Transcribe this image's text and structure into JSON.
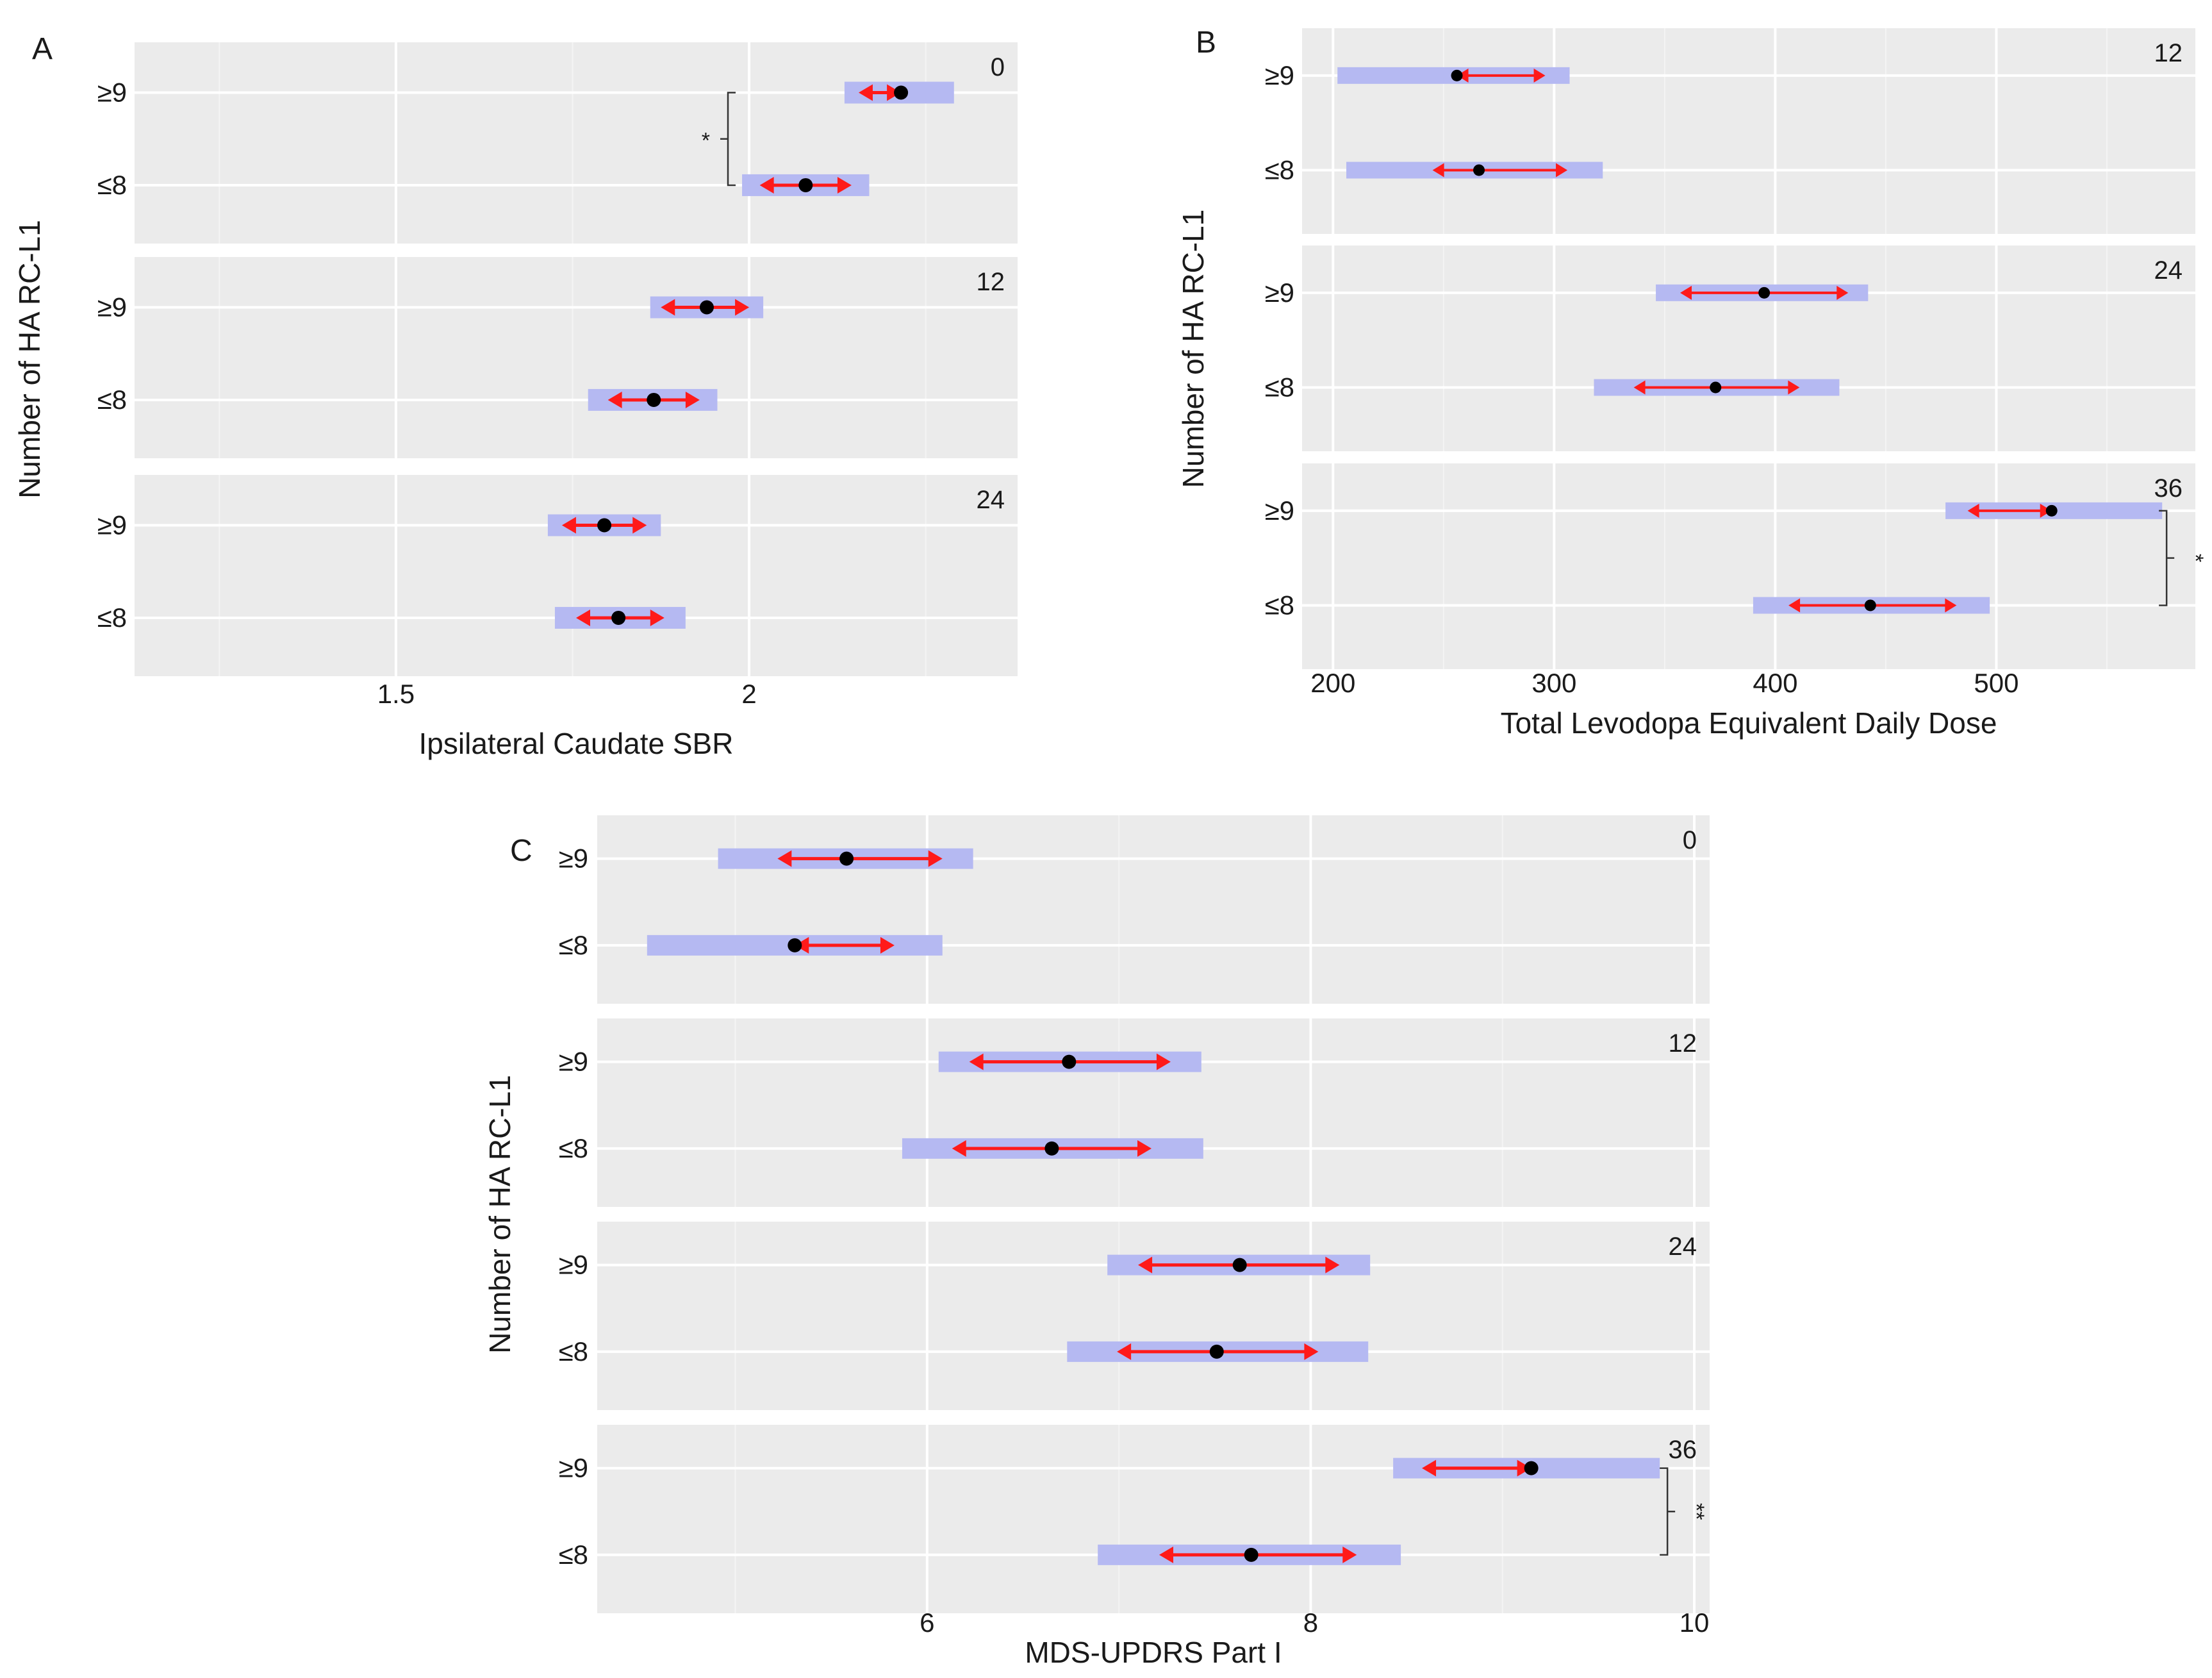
{
  "colors": {
    "panel_bg": "#ebebeb",
    "grid_major": "#ffffff",
    "grid_minor": "#f4f4f4",
    "ci_band": "#b5b9f2",
    "arrow": "#ff1a1a",
    "point": "#000000",
    "text": "#1a1a1a"
  },
  "chart_data": [
    {
      "id": "A",
      "type": "forest",
      "panel_label": "A",
      "xlabel": "Ipsilateral Caudate SBR",
      "ylabel": "Number of HA RC-L1",
      "xlim": [
        1.13,
        2.38
      ],
      "xticks": [
        1.5,
        2
      ],
      "xtick_labels": [
        "1.5",
        "2"
      ],
      "minor_xticks": [
        1.25,
        1.75,
        2.25
      ],
      "categories": [
        "≥9",
        "≤8"
      ],
      "facets": [
        {
          "label": "0",
          "rows": [
            {
              "group": "≥9",
              "mean": 2.215,
              "band": [
                2.135,
                2.29
              ],
              "arrow": [
                2.155,
                2.215
              ]
            },
            {
              "group": "≤8",
              "mean": 2.08,
              "band": [
                1.99,
                2.17
              ],
              "arrow": [
                2.015,
                2.145
              ]
            }
          ],
          "significance": {
            "label": "*",
            "from": "≥9",
            "to": "≤8",
            "side": "left",
            "x": 1.97
          }
        },
        {
          "label": "12",
          "rows": [
            {
              "group": "≥9",
              "mean": 1.94,
              "band": [
                1.86,
                2.02
              ],
              "arrow": [
                1.875,
                2.0
              ]
            },
            {
              "group": "≤8",
              "mean": 1.865,
              "band": [
                1.772,
                1.955
              ],
              "arrow": [
                1.8,
                1.93
              ]
            }
          ]
        },
        {
          "label": "24",
          "rows": [
            {
              "group": "≥9",
              "mean": 1.795,
              "band": [
                1.715,
                1.875
              ],
              "arrow": [
                1.735,
                1.855
              ]
            },
            {
              "group": "≤8",
              "mean": 1.815,
              "band": [
                1.725,
                1.91
              ],
              "arrow": [
                1.755,
                1.88
              ]
            }
          ]
        }
      ]
    },
    {
      "id": "B",
      "type": "forest",
      "panel_label": "B",
      "xlabel": "Total Levodopa Equivalent Daily Dose",
      "ylabel": "Number of HA RC-L1",
      "xlim": [
        186,
        590
      ],
      "xticks": [
        200,
        300,
        400,
        500
      ],
      "xtick_labels": [
        "200",
        "300",
        "400",
        "500"
      ],
      "minor_xticks": [
        250,
        350,
        450,
        550
      ],
      "categories": [
        "≥9",
        "≤8"
      ],
      "facets": [
        {
          "label": "12",
          "rows": [
            {
              "group": "≥9",
              "mean": 256,
              "band": [
                202,
                307
              ],
              "arrow": [
                256,
                296
              ]
            },
            {
              "group": "≤8",
              "mean": 266,
              "band": [
                206,
                322
              ],
              "arrow": [
                245,
                306
              ]
            }
          ]
        },
        {
          "label": "24",
          "rows": [
            {
              "group": "≥9",
              "mean": 395,
              "band": [
                346,
                442
              ],
              "arrow": [
                357,
                433
              ]
            },
            {
              "group": "≤8",
              "mean": 373,
              "band": [
                318,
                429
              ],
              "arrow": [
                336,
                411
              ]
            }
          ]
        },
        {
          "label": "36",
          "rows": [
            {
              "group": "≥9",
              "mean": 525,
              "band": [
                477,
                575
              ],
              "arrow": [
                487,
                525
              ]
            },
            {
              "group": "≤8",
              "mean": 443,
              "band": [
                390,
                497
              ],
              "arrow": [
                406,
                482
              ]
            }
          ],
          "significance": {
            "label": "*",
            "from": "≥9",
            "to": "≤8",
            "side": "right",
            "x": 577
          }
        }
      ]
    },
    {
      "id": "C",
      "type": "forest",
      "panel_label": "C",
      "xlabel": "MDS-UPDRS Part I",
      "ylabel": "Number of HA RC-L1",
      "xlim": [
        4.28,
        10.08
      ],
      "xticks": [
        6,
        8,
        10
      ],
      "xtick_labels": [
        "6",
        "8",
        "10"
      ],
      "minor_xticks": [
        5,
        7,
        9
      ],
      "categories": [
        "≥9",
        "≤8"
      ],
      "facets": [
        {
          "label": "0",
          "rows": [
            {
              "group": "≥9",
              "mean": 5.58,
              "band": [
                4.91,
                6.24
              ],
              "arrow": [
                5.22,
                6.08
              ]
            },
            {
              "group": "≤8",
              "mean": 5.31,
              "band": [
                4.54,
                6.08
              ],
              "arrow": [
                5.31,
                5.83
              ]
            }
          ]
        },
        {
          "label": "12",
          "rows": [
            {
              "group": "≥9",
              "mean": 6.74,
              "band": [
                6.06,
                7.43
              ],
              "arrow": [
                6.22,
                7.27
              ]
            },
            {
              "group": "≤8",
              "mean": 6.65,
              "band": [
                5.87,
                7.44
              ],
              "arrow": [
                6.13,
                7.17
              ]
            }
          ]
        },
        {
          "label": "24",
          "rows": [
            {
              "group": "≥9",
              "mean": 7.63,
              "band": [
                6.94,
                8.31
              ],
              "arrow": [
                7.1,
                8.15
              ]
            },
            {
              "group": "≤8",
              "mean": 7.51,
              "band": [
                6.73,
                8.3
              ],
              "arrow": [
                6.99,
                8.04
              ]
            }
          ]
        },
        {
          "label": "36",
          "rows": [
            {
              "group": "≥9",
              "mean": 9.15,
              "band": [
                8.43,
                9.82
              ],
              "arrow": [
                8.58,
                9.15
              ]
            },
            {
              "group": "≤8",
              "mean": 7.69,
              "band": [
                6.89,
                8.47
              ],
              "arrow": [
                7.21,
                8.24
              ]
            }
          ],
          "significance": {
            "label": "**",
            "from": "≥9",
            "to": "≤8",
            "side": "right",
            "x": 9.86
          }
        }
      ]
    }
  ]
}
